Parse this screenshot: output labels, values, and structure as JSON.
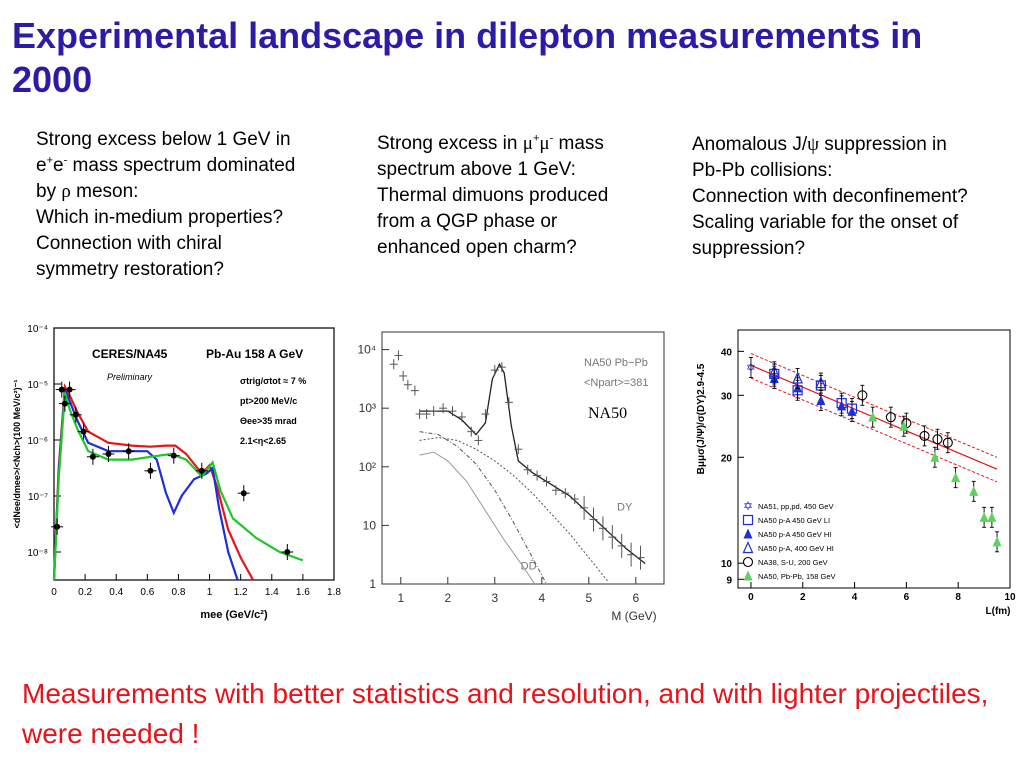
{
  "title": "Experimental landscape in dilepton measurements in 2000",
  "columns": [
    {
      "line1": "Strong excess below 1 GeV in",
      "line2a": "e",
      "line2b": "+",
      "line2c": "e",
      "line2d": "-",
      "line2e": " mass spectrum dominated",
      "line3a": "by ",
      "line3b": "ρ",
      "line3c": " meson:",
      "line4": "Which in-medium properties?",
      "line5": "Connection with chiral",
      "line6": "symmetry restoration?"
    },
    {
      "line1a": "Strong excess in ",
      "line1b": "μ",
      "line1c": "+",
      "line1d": "μ",
      "line1e": "-",
      "line1f": " mass",
      "line2": "spectrum above 1 GeV:",
      "line3": "Thermal dimuons produced",
      "line4": "from a QGP phase or",
      "line5": "enhanced open charm?"
    },
    {
      "line1a": "Anomalous J/",
      "line1b": "ψ",
      "line1c": " suppression in",
      "line2": "Pb-Pb collisions:",
      "line3": "Connection with deconfinement?",
      "line4": "Scaling variable for the onset of",
      "line5": "suppression?"
    }
  ],
  "footer": "Measurements with better statistics and resolution, and with lighter projectiles, were needed !",
  "colors": {
    "title": "#2b1ca6",
    "footer": "#e5141b"
  },
  "chart_data": [
    {
      "type": "line",
      "experiment": "CERES/NA45",
      "system": "Pb-Au 158 A GeV",
      "note": "Preliminary",
      "cuts": [
        "σtrig/σtot ≈ 7 %",
        "pt>200 MeV/c",
        "Θee>35 mrad",
        "2.1<η<2.65"
      ],
      "xlabel": "mee (GeV/c²)",
      "ylabel": "<dNee/dmee>/<Nch>(100 MeV/c²)⁻¹",
      "x_ticks": [
        "0",
        "0.2",
        "0.4",
        "0.6",
        "0.8",
        "1",
        "1.2",
        "1.4",
        "1.6",
        "1.8"
      ],
      "y_ticks": [
        "10⁻⁴",
        "10⁻⁵",
        "10⁻⁶",
        "10⁻⁷",
        "10⁻⁸"
      ],
      "xlim": [
        0,
        1.8
      ],
      "ylim_log10": [
        -8.5,
        -4
      ],
      "points": [
        {
          "x": 0.02,
          "y": -7.55
        },
        {
          "x": 0.05,
          "y": -5.1
        },
        {
          "x": 0.07,
          "y": -5.35
        },
        {
          "x": 0.1,
          "y": -5.1
        },
        {
          "x": 0.14,
          "y": -5.55
        },
        {
          "x": 0.19,
          "y": -5.85
        },
        {
          "x": 0.25,
          "y": -6.3
        },
        {
          "x": 0.35,
          "y": -6.25
        },
        {
          "x": 0.48,
          "y": -6.2
        },
        {
          "x": 0.62,
          "y": -6.55
        },
        {
          "x": 0.77,
          "y": -6.28
        },
        {
          "x": 0.95,
          "y": -6.55
        },
        {
          "x": 1.22,
          "y": -6.95
        },
        {
          "x": 1.5,
          "y": -8.0
        }
      ],
      "series": [
        {
          "name": "red",
          "color": "#e5141b",
          "values": [
            [
              0.0,
              -8.5
            ],
            [
              0.03,
              -6.5
            ],
            [
              0.07,
              -5.05
            ],
            [
              0.1,
              -5.2
            ],
            [
              0.15,
              -5.5
            ],
            [
              0.22,
              -5.85
            ],
            [
              0.35,
              -6.05
            ],
            [
              0.5,
              -6.1
            ],
            [
              0.62,
              -6.12
            ],
            [
              0.72,
              -6.1
            ],
            [
              0.78,
              -6.1
            ],
            [
              0.85,
              -6.25
            ],
            [
              0.95,
              -6.6
            ],
            [
              1.0,
              -6.45
            ],
            [
              1.05,
              -6.85
            ],
            [
              1.12,
              -7.6
            ],
            [
              1.2,
              -8.1
            ],
            [
              1.28,
              -8.5
            ]
          ]
        },
        {
          "name": "blue",
          "color": "#1f2ed6",
          "values": [
            [
              0.0,
              -8.5
            ],
            [
              0.03,
              -6.6
            ],
            [
              0.07,
              -5.1
            ],
            [
              0.1,
              -5.3
            ],
            [
              0.15,
              -5.65
            ],
            [
              0.22,
              -6.05
            ],
            [
              0.35,
              -6.2
            ],
            [
              0.5,
              -6.2
            ],
            [
              0.6,
              -6.2
            ],
            [
              0.66,
              -6.35
            ],
            [
              0.72,
              -6.95
            ],
            [
              0.77,
              -7.3
            ],
            [
              0.82,
              -7.0
            ],
            [
              0.9,
              -6.7
            ],
            [
              0.98,
              -6.6
            ],
            [
              1.02,
              -6.5
            ],
            [
              1.06,
              -7.2
            ],
            [
              1.12,
              -8.0
            ],
            [
              1.18,
              -8.5
            ]
          ]
        },
        {
          "name": "green",
          "color": "#22c52a",
          "values": [
            [
              0.0,
              -8.5
            ],
            [
              0.03,
              -6.7
            ],
            [
              0.07,
              -5.15
            ],
            [
              0.1,
              -5.45
            ],
            [
              0.15,
              -5.8
            ],
            [
              0.22,
              -6.2
            ],
            [
              0.35,
              -6.35
            ],
            [
              0.5,
              -6.35
            ],
            [
              0.62,
              -6.3
            ],
            [
              0.75,
              -6.25
            ],
            [
              0.85,
              -6.35
            ],
            [
              0.95,
              -6.65
            ],
            [
              1.02,
              -6.4
            ],
            [
              1.07,
              -6.9
            ],
            [
              1.15,
              -7.4
            ],
            [
              1.3,
              -7.75
            ],
            [
              1.45,
              -8.0
            ],
            [
              1.6,
              -8.15
            ]
          ]
        }
      ]
    },
    {
      "type": "line",
      "experiment": "NA50",
      "system": "NA50 Pb−Pb",
      "npart_label": "<Npart>=381",
      "xlabel": "M (GeV)",
      "x_ticks": [
        "1",
        "2",
        "3",
        "4",
        "5",
        "6"
      ],
      "y_ticks": [
        "10⁴",
        "10³",
        "10²",
        "10",
        "1"
      ],
      "xlim": [
        0.6,
        6.6
      ],
      "ylim_log10": [
        0,
        4.3
      ],
      "curve_labels": [
        "DY",
        "DD̄"
      ],
      "points": [
        {
          "x": 0.85,
          "y": 3.75
        },
        {
          "x": 0.95,
          "y": 3.9
        },
        {
          "x": 1.05,
          "y": 3.55
        },
        {
          "x": 1.15,
          "y": 3.4
        },
        {
          "x": 1.3,
          "y": 3.3
        },
        {
          "x": 1.4,
          "y": 2.9
        },
        {
          "x": 1.55,
          "y": 2.9
        },
        {
          "x": 1.7,
          "y": 2.95
        },
        {
          "x": 1.9,
          "y": 3.0
        },
        {
          "x": 2.1,
          "y": 2.95
        },
        {
          "x": 2.3,
          "y": 2.85
        },
        {
          "x": 2.5,
          "y": 2.6
        },
        {
          "x": 2.65,
          "y": 2.45
        },
        {
          "x": 2.8,
          "y": 2.9
        },
        {
          "x": 3.0,
          "y": 3.65
        },
        {
          "x": 3.15,
          "y": 3.7
        },
        {
          "x": 3.3,
          "y": 3.1
        },
        {
          "x": 3.5,
          "y": 2.3
        },
        {
          "x": 3.7,
          "y": 1.95
        },
        {
          "x": 3.9,
          "y": 1.85
        },
        {
          "x": 4.1,
          "y": 1.75
        },
        {
          "x": 4.3,
          "y": 1.6
        },
        {
          "x": 4.5,
          "y": 1.55
        },
        {
          "x": 4.7,
          "y": 1.45
        },
        {
          "x": 4.9,
          "y": 1.3
        },
        {
          "x": 5.1,
          "y": 1.1
        },
        {
          "x": 5.3,
          "y": 0.95
        },
        {
          "x": 5.5,
          "y": 0.8
        },
        {
          "x": 5.7,
          "y": 0.65
        },
        {
          "x": 5.9,
          "y": 0.5
        },
        {
          "x": 6.1,
          "y": 0.45
        }
      ],
      "series": [
        {
          "name": "total",
          "values": [
            [
              1.4,
              2.95
            ],
            [
              1.7,
              2.95
            ],
            [
              2.0,
              2.95
            ],
            [
              2.3,
              2.8
            ],
            [
              2.6,
              2.55
            ],
            [
              2.8,
              2.75
            ],
            [
              2.95,
              3.5
            ],
            [
              3.1,
              3.75
            ],
            [
              3.2,
              3.6
            ],
            [
              3.35,
              2.7
            ],
            [
              3.5,
              2.1
            ],
            [
              3.8,
              1.9
            ],
            [
              4.2,
              1.7
            ],
            [
              4.6,
              1.5
            ],
            [
              5.0,
              1.2
            ],
            [
              5.4,
              0.9
            ],
            [
              5.8,
              0.6
            ],
            [
              6.2,
              0.35
            ]
          ]
        },
        {
          "name": "dotted",
          "values": [
            [
              1.4,
              2.45
            ],
            [
              1.8,
              2.5
            ],
            [
              2.2,
              2.45
            ],
            [
              2.6,
              2.3
            ],
            [
              3.0,
              2.1
            ],
            [
              3.4,
              1.85
            ],
            [
              3.8,
              1.55
            ],
            [
              4.2,
              1.2
            ],
            [
              4.6,
              0.85
            ],
            [
              5.0,
              0.45
            ],
            [
              5.4,
              0.05
            ]
          ]
        },
        {
          "name": "dashdot",
          "values": [
            [
              1.4,
              2.6
            ],
            [
              1.8,
              2.55
            ],
            [
              2.2,
              2.35
            ],
            [
              2.6,
              2.05
            ],
            [
              3.0,
              1.6
            ],
            [
              3.4,
              1.05
            ],
            [
              3.8,
              0.45
            ],
            [
              4.1,
              0.0
            ]
          ]
        },
        {
          "name": "DD",
          "values": [
            [
              1.4,
              2.2
            ],
            [
              1.7,
              2.25
            ],
            [
              2.0,
              2.1
            ],
            [
              2.4,
              1.75
            ],
            [
              2.8,
              1.25
            ],
            [
              3.2,
              0.75
            ],
            [
              3.6,
              0.3
            ],
            [
              3.85,
              0.0
            ]
          ]
        }
      ]
    },
    {
      "type": "scatter",
      "ylabel": "Bμμσ(J/Ψ)/σ(DY)2.9-4.5",
      "xlabel": "L(fm)",
      "x_ticks": [
        "0",
        "2",
        "4",
        "6",
        "8",
        "10"
      ],
      "y_ticks": [
        "40",
        "30",
        "20",
        "10",
        "9"
      ],
      "xlim": [
        -0.5,
        10
      ],
      "ylim_log": [
        8.5,
        46
      ],
      "legend": [
        "NA51, pp,pd, 450 GeV",
        "NA50 p-A 450 GeV LI",
        "NA50 p-A 450 GeV HI",
        "NA50 p-A, 400 GeV HI",
        "NA38, S-U, 200 GeV",
        "NA50, Pb-Pb, 158 GeV"
      ],
      "legend_placement": "bottom-left",
      "fit_line": [
        [
          0.0,
          36.5
        ],
        [
          9.5,
          18.5
        ]
      ],
      "points": [
        {
          "series": 0,
          "x": 0.0,
          "y": 36.0
        },
        {
          "series": 0,
          "x": 0.9,
          "y": 34.0
        },
        {
          "series": 1,
          "x": 0.9,
          "y": 34.5
        },
        {
          "series": 1,
          "x": 1.8,
          "y": 31.0
        },
        {
          "series": 1,
          "x": 2.7,
          "y": 32.0
        },
        {
          "series": 1,
          "x": 3.5,
          "y": 28.5
        },
        {
          "series": 1,
          "x": 3.9,
          "y": 27.5
        },
        {
          "series": 2,
          "x": 0.9,
          "y": 33.5
        },
        {
          "series": 2,
          "x": 1.8,
          "y": 31.5
        },
        {
          "series": 2,
          "x": 2.7,
          "y": 29.0
        },
        {
          "series": 2,
          "x": 3.5,
          "y": 28.0
        },
        {
          "series": 2,
          "x": 3.9,
          "y": 27.0
        },
        {
          "series": 3,
          "x": 0.9,
          "y": 35.0
        },
        {
          "series": 3,
          "x": 1.8,
          "y": 33.5
        },
        {
          "series": 3,
          "x": 2.7,
          "y": 32.5
        },
        {
          "series": 4,
          "x": 4.3,
          "y": 30.0
        },
        {
          "series": 4,
          "x": 5.4,
          "y": 26.0
        },
        {
          "series": 4,
          "x": 6.0,
          "y": 25.0
        },
        {
          "series": 4,
          "x": 6.7,
          "y": 23.0
        },
        {
          "series": 4,
          "x": 7.2,
          "y": 22.5
        },
        {
          "series": 4,
          "x": 7.6,
          "y": 22.0
        },
        {
          "series": 5,
          "x": 4.7,
          "y": 26.0
        },
        {
          "series": 5,
          "x": 5.9,
          "y": 24.5
        },
        {
          "series": 5,
          "x": 7.1,
          "y": 20.0
        },
        {
          "series": 5,
          "x": 7.9,
          "y": 17.5
        },
        {
          "series": 5,
          "x": 8.6,
          "y": 16.0
        },
        {
          "series": 5,
          "x": 9.0,
          "y": 13.5
        },
        {
          "series": 5,
          "x": 9.3,
          "y": 13.5
        },
        {
          "series": 5,
          "x": 9.5,
          "y": 11.5
        }
      ]
    }
  ]
}
